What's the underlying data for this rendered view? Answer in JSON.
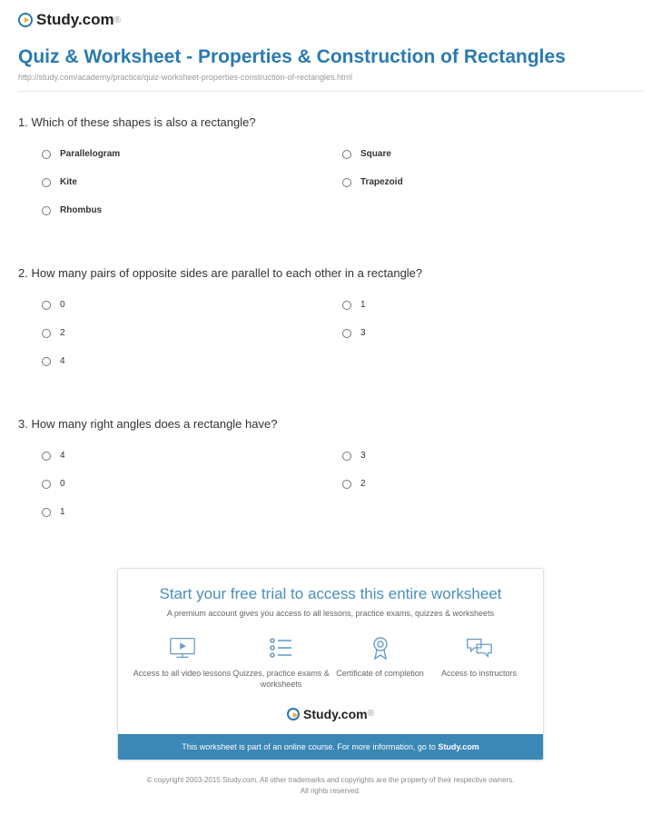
{
  "brand": {
    "name": "Study.com",
    "ext": "®"
  },
  "header": {
    "title": "Quiz & Worksheet - Properties & Construction of Rectangles",
    "url": "http://study.com/academy/practice/quiz-worksheet-properties-construction-of-rectangles.html"
  },
  "questions": [
    {
      "number": "1.",
      "text": "Which of these shapes is also a rectangle?",
      "bold": true,
      "options": [
        [
          "Parallelogram",
          "Square"
        ],
        [
          "Kite",
          "Trapezoid"
        ],
        [
          "Rhombus",
          null
        ]
      ]
    },
    {
      "number": "2.",
      "text": "How many pairs of opposite sides are parallel to each other in a rectangle?",
      "bold": false,
      "options": [
        [
          "0",
          "1"
        ],
        [
          "2",
          "3"
        ],
        [
          "4",
          null
        ]
      ]
    },
    {
      "number": "3.",
      "text": "How many right angles does a rectangle have?",
      "bold": false,
      "options": [
        [
          "4",
          "3"
        ],
        [
          "0",
          "2"
        ],
        [
          "1",
          null
        ]
      ]
    }
  ],
  "cta": {
    "title": "Start your free trial to access this entire worksheet",
    "subtitle": "A premium account gives you access to all lessons, practice exams, quizzes & worksheets",
    "benefits": [
      "Access to all video lessons",
      "Quizzes, practice exams & worksheets",
      "Certificate of completion",
      "Access to instructors"
    ],
    "banner_prefix": "This worksheet is part of an online course. For more information, go to ",
    "banner_link": "Study.com"
  },
  "footer": {
    "line1": "© copyright 2003-2015 Study.com. All other trademarks and copyrights are the property of their respective owners.",
    "line2": "All rights reserved."
  },
  "colors": {
    "primary": "#2a7ab0",
    "banner": "#3b87b5",
    "icon": "#6b9dc4",
    "text": "#333333",
    "muted": "#999999"
  }
}
